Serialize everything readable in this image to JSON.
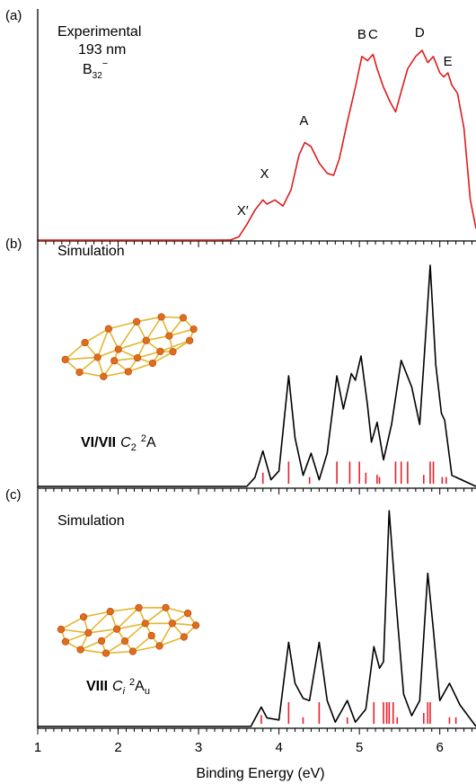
{
  "colors": {
    "experimental": "#dd1c1c",
    "simulation": "#000000",
    "sticks": "#e8202a",
    "atom": "#e06c1c",
    "atom_dark": "#b4400c",
    "bond": "#e3b72f"
  },
  "xaxis": {
    "label": "Binding Energy (eV)",
    "ticks": [
      "1",
      "2",
      "3",
      "4",
      "5",
      "6"
    ],
    "xlim": [
      1.0,
      6.45
    ]
  },
  "chart_data": [
    {
      "type": "line",
      "panel_label": "(a)",
      "title": "Experimental",
      "subtitle": "193 nm",
      "species": {
        "base": "B",
        "sub": "32",
        "sup": "−"
      },
      "xlim": [
        1.0,
        6.45
      ],
      "ylim": [
        0,
        1.0
      ],
      "annotations": [
        {
          "text": "X′",
          "x": 3.55,
          "y": 0.1
        },
        {
          "text": "X",
          "x": 3.82,
          "y": 0.28
        },
        {
          "text": "A",
          "x": 4.31,
          "y": 0.54
        },
        {
          "text": "B",
          "x": 5.03,
          "y": 0.96
        },
        {
          "text": "C",
          "x": 5.17,
          "y": 0.96
        },
        {
          "text": "D",
          "x": 5.75,
          "y": 0.97
        },
        {
          "text": "E",
          "x": 6.1,
          "y": 0.83
        }
      ],
      "series": [
        {
          "points": [
            [
              1.0,
              0.004
            ],
            [
              3.2,
              0.004
            ],
            [
              3.4,
              0.005
            ],
            [
              3.5,
              0.02
            ],
            [
              3.6,
              0.08
            ],
            [
              3.7,
              0.15
            ],
            [
              3.8,
              0.2
            ],
            [
              3.85,
              0.18
            ],
            [
              3.95,
              0.2
            ],
            [
              4.05,
              0.17
            ],
            [
              4.15,
              0.25
            ],
            [
              4.25,
              0.42
            ],
            [
              4.32,
              0.48
            ],
            [
              4.4,
              0.46
            ],
            [
              4.5,
              0.38
            ],
            [
              4.6,
              0.33
            ],
            [
              4.68,
              0.32
            ],
            [
              4.75,
              0.4
            ],
            [
              4.85,
              0.58
            ],
            [
              4.95,
              0.75
            ],
            [
              5.03,
              0.9
            ],
            [
              5.1,
              0.88
            ],
            [
              5.17,
              0.91
            ],
            [
              5.22,
              0.84
            ],
            [
              5.3,
              0.75
            ],
            [
              5.38,
              0.68
            ],
            [
              5.45,
              0.63
            ],
            [
              5.5,
              0.7
            ],
            [
              5.6,
              0.84
            ],
            [
              5.7,
              0.9
            ],
            [
              5.78,
              0.93
            ],
            [
              5.85,
              0.87
            ],
            [
              5.92,
              0.9
            ],
            [
              6.0,
              0.82
            ],
            [
              6.05,
              0.8
            ],
            [
              6.1,
              0.82
            ],
            [
              6.15,
              0.76
            ],
            [
              6.22,
              0.72
            ],
            [
              6.3,
              0.55
            ],
            [
              6.38,
              0.2
            ],
            [
              6.45,
              0.06
            ]
          ]
        }
      ]
    },
    {
      "type": "line",
      "panel_label": "(b)",
      "title": "Simulation",
      "isomer": {
        "numeral": "VI/VII",
        "group_base": "C",
        "group_sub": "2",
        "state_sup": "2",
        "state_base": "A",
        "state_sub": ""
      },
      "xlim": [
        1.0,
        6.45
      ],
      "ylim": [
        0,
        1.0
      ],
      "series": [
        {
          "points": [
            [
              1.0,
              0.0
            ],
            [
              3.6,
              0.0
            ],
            [
              3.7,
              0.04
            ],
            [
              3.8,
              0.16
            ],
            [
              3.9,
              0.03
            ],
            [
              4.0,
              0.07
            ],
            [
              4.12,
              0.5
            ],
            [
              4.2,
              0.22
            ],
            [
              4.3,
              0.05
            ],
            [
              4.4,
              0.15
            ],
            [
              4.5,
              0.03
            ],
            [
              4.6,
              0.15
            ],
            [
              4.72,
              0.5
            ],
            [
              4.8,
              0.35
            ],
            [
              4.9,
              0.51
            ],
            [
              4.95,
              0.48
            ],
            [
              5.02,
              0.59
            ],
            [
              5.1,
              0.37
            ],
            [
              5.15,
              0.2
            ],
            [
              5.22,
              0.29
            ],
            [
              5.3,
              0.12
            ],
            [
              5.4,
              0.28
            ],
            [
              5.52,
              0.57
            ],
            [
              5.65,
              0.45
            ],
            [
              5.75,
              0.28
            ],
            [
              5.8,
              0.55
            ],
            [
              5.88,
              1.0
            ],
            [
              5.95,
              0.55
            ],
            [
              6.02,
              0.33
            ],
            [
              6.06,
              0.3
            ],
            [
              6.15,
              0.05
            ],
            [
              6.45,
              0.0
            ]
          ]
        }
      ],
      "sticks": [
        3.8,
        4.12,
        4.38,
        4.72,
        4.88,
        5.0,
        5.08,
        5.22,
        5.25,
        5.45,
        5.52,
        5.6,
        5.8,
        5.88,
        5.92,
        6.03,
        6.08
      ],
      "stick_heights": [
        0.05,
        0.1,
        0.03,
        0.1,
        0.1,
        0.1,
        0.05,
        0.04,
        0.03,
        0.1,
        0.1,
        0.1,
        0.04,
        0.1,
        0.1,
        0.03,
        0.03
      ]
    },
    {
      "type": "line",
      "panel_label": "(c)",
      "title": "Simulation",
      "isomer": {
        "numeral": "VIII",
        "group_base": "C",
        "group_sub": "i",
        "state_sup": "2",
        "state_base": "A",
        "state_sub": "u"
      },
      "xlim": [
        1.0,
        6.45
      ],
      "ylim": [
        0,
        1.0
      ],
      "series": [
        {
          "points": [
            [
              1.0,
              0.0
            ],
            [
              3.65,
              0.0
            ],
            [
              3.78,
              0.09
            ],
            [
              3.85,
              0.04
            ],
            [
              4.0,
              0.03
            ],
            [
              4.12,
              0.39
            ],
            [
              4.2,
              0.2
            ],
            [
              4.3,
              0.13
            ],
            [
              4.38,
              0.12
            ],
            [
              4.5,
              0.39
            ],
            [
              4.6,
              0.12
            ],
            [
              4.7,
              0.02
            ],
            [
              4.85,
              0.12
            ],
            [
              4.95,
              0.02
            ],
            [
              5.08,
              0.08
            ],
            [
              5.18,
              0.37
            ],
            [
              5.25,
              0.27
            ],
            [
              5.3,
              0.3
            ],
            [
              5.37,
              1.0
            ],
            [
              5.45,
              0.6
            ],
            [
              5.55,
              0.15
            ],
            [
              5.65,
              0.05
            ],
            [
              5.75,
              0.12
            ],
            [
              5.85,
              0.71
            ],
            [
              5.92,
              0.45
            ],
            [
              6.0,
              0.12
            ],
            [
              6.12,
              0.2
            ],
            [
              6.25,
              0.1
            ],
            [
              6.45,
              0.0
            ]
          ]
        }
      ],
      "sticks": [
        3.78,
        4.12,
        4.3,
        4.5,
        4.85,
        5.18,
        5.3,
        5.34,
        5.37,
        5.42,
        5.47,
        5.8,
        5.85,
        5.88,
        6.12,
        6.2
      ],
      "stick_heights": [
        0.04,
        0.1,
        0.03,
        0.1,
        0.03,
        0.1,
        0.1,
        0.1,
        0.1,
        0.1,
        0.03,
        0.05,
        0.1,
        0.1,
        0.03,
        0.03
      ]
    }
  ]
}
